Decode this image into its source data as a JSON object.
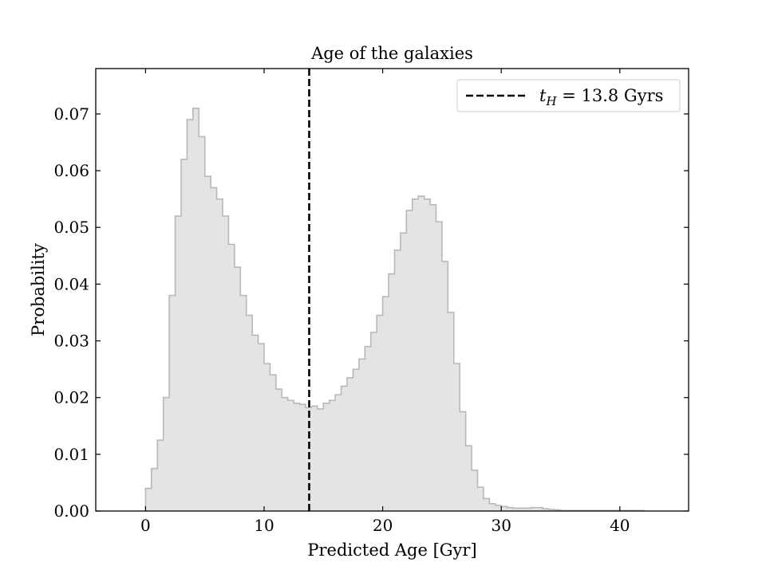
{
  "chart_data": {
    "type": "histogram",
    "title": "Age of the galaxies",
    "xlabel": "Predicted Age [Gyr]",
    "ylabel": "Probability",
    "xlim": [
      -4.2,
      45.8
    ],
    "ylim": [
      0,
      0.078
    ],
    "xticks": [
      0,
      10,
      20,
      30,
      40
    ],
    "xtick_labels": [
      "0",
      "10",
      "20",
      "30",
      "40"
    ],
    "yticks": [
      0,
      0.01,
      0.02,
      0.03,
      0.04,
      0.05,
      0.06,
      0.07
    ],
    "ytick_labels": [
      "0.00",
      "0.01",
      "0.02",
      "0.03",
      "0.04",
      "0.05",
      "0.06",
      "0.07"
    ],
    "grid": false,
    "legend": {
      "position": "top-right",
      "entries": [
        {
          "label": "t_H = 13.8 Gyrs",
          "style": "dashed-black-line"
        }
      ]
    },
    "reference_line": {
      "x": 13.8,
      "orientation": "vertical",
      "style": "dashed",
      "color": "#000000"
    },
    "series": [
      {
        "fill_color": "#e4e4e4",
        "edge_color": "#b8b8b8",
        "bin_width": 0.5,
        "x": [
          0.0,
          0.5,
          1.0,
          1.5,
          2.0,
          2.5,
          3.0,
          3.5,
          4.0,
          4.5,
          5.0,
          5.5,
          6.0,
          6.5,
          7.0,
          7.5,
          8.0,
          8.5,
          9.0,
          9.5,
          10.0,
          10.5,
          11.0,
          11.5,
          12.0,
          12.5,
          13.0,
          13.5,
          14.0,
          14.5,
          15.0,
          15.5,
          16.0,
          16.5,
          17.0,
          17.5,
          18.0,
          18.5,
          19.0,
          19.5,
          20.0,
          20.5,
          21.0,
          21.5,
          22.0,
          22.5,
          23.0,
          23.5,
          24.0,
          24.5,
          25.0,
          25.5,
          26.0,
          26.5,
          27.0,
          27.5,
          28.0,
          28.5,
          29.0,
          29.5,
          30.0,
          30.5,
          31.0,
          31.5,
          32.0,
          32.5,
          33.0,
          33.5,
          34.0,
          34.5,
          35.0,
          35.5,
          36.0,
          36.5,
          37.0,
          37.5,
          38.0,
          38.5,
          39.0,
          39.5,
          40.0,
          40.5,
          41.0,
          41.5
        ],
        "values": [
          0.004,
          0.0075,
          0.0125,
          0.02,
          0.038,
          0.052,
          0.062,
          0.069,
          0.071,
          0.066,
          0.059,
          0.057,
          0.055,
          0.052,
          0.047,
          0.043,
          0.038,
          0.0345,
          0.031,
          0.0295,
          0.026,
          0.024,
          0.0215,
          0.02,
          0.0195,
          0.019,
          0.0188,
          0.0182,
          0.0185,
          0.018,
          0.019,
          0.0195,
          0.0205,
          0.022,
          0.0235,
          0.025,
          0.0268,
          0.029,
          0.0315,
          0.0345,
          0.0378,
          0.0418,
          0.046,
          0.049,
          0.053,
          0.055,
          0.0555,
          0.055,
          0.054,
          0.051,
          0.044,
          0.035,
          0.026,
          0.0175,
          0.0115,
          0.0072,
          0.0042,
          0.0022,
          0.0013,
          0.001,
          0.0008,
          0.0006,
          0.0005,
          0.0005,
          0.0005,
          0.0006,
          0.0006,
          0.0004,
          0.0003,
          0.0002,
          0.0001,
          0.0001,
          0.0001,
          0.0001,
          0.0001,
          0.0001,
          0.0001,
          0.0001,
          0.0001,
          0.0001,
          0.0001,
          0.0001,
          0.0001,
          0.0001
        ]
      }
    ]
  }
}
